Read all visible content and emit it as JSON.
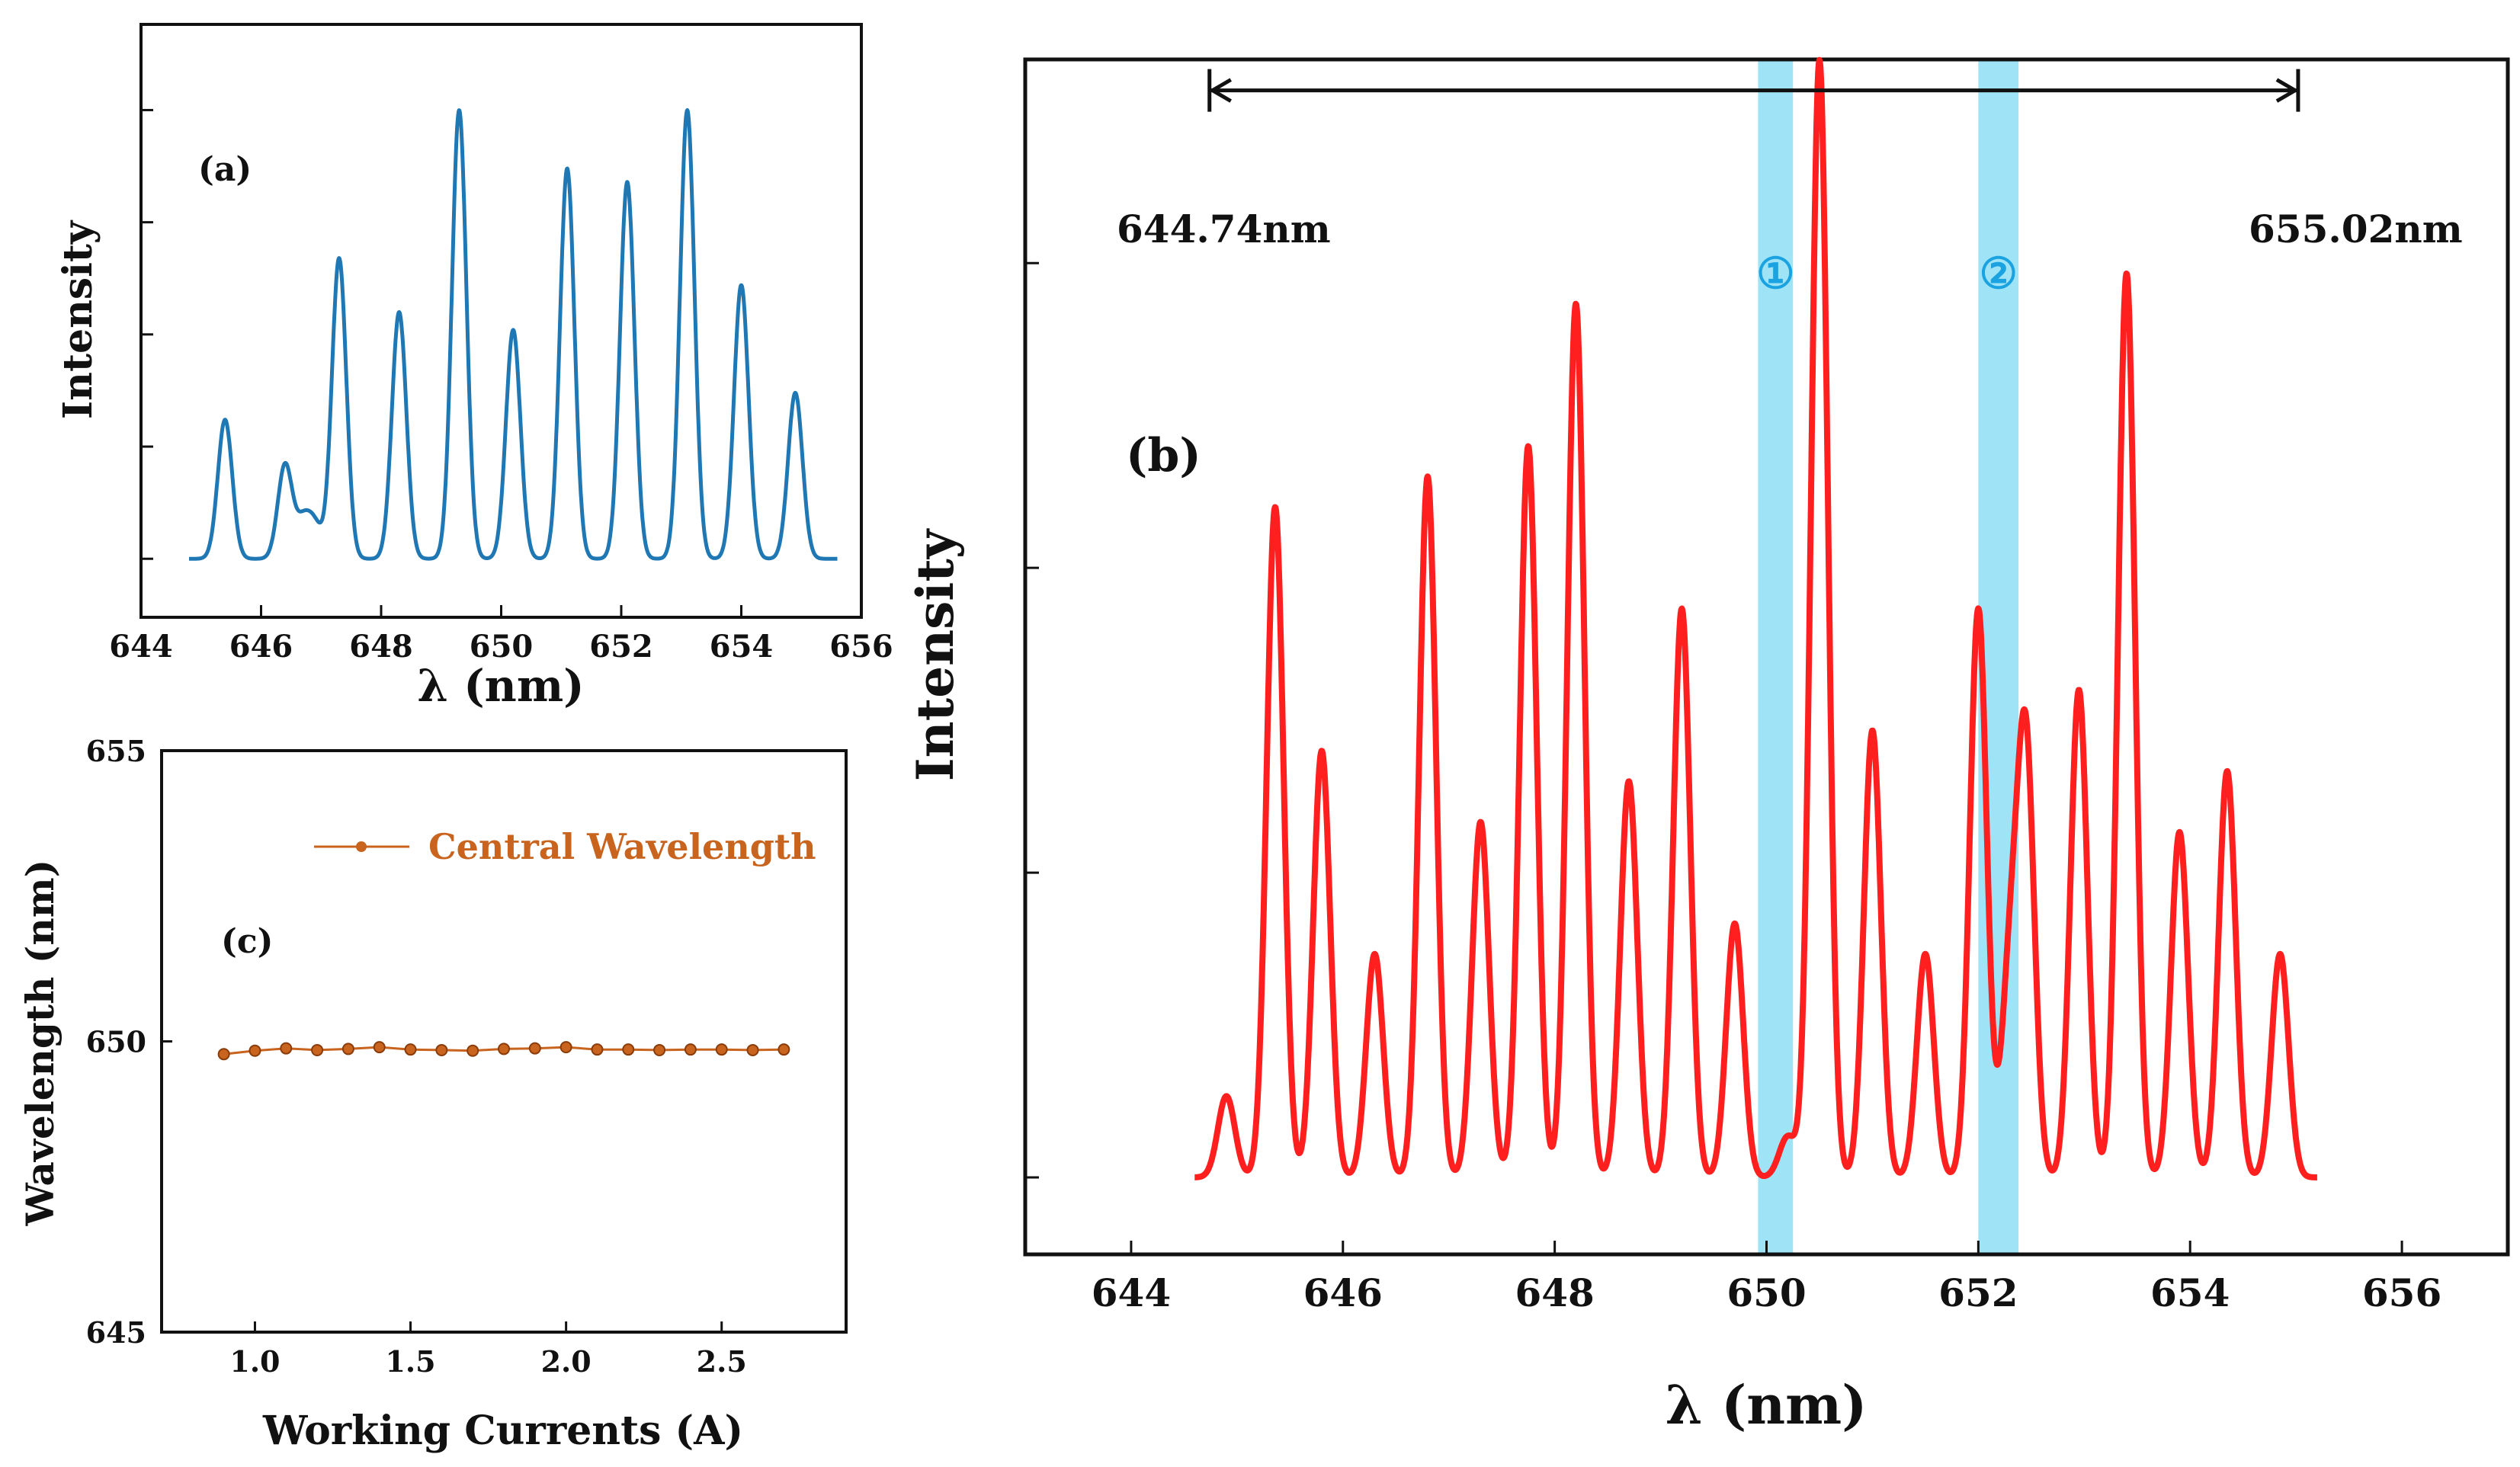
{
  "colors": {
    "panel_a_line": "#1f77b4",
    "panel_b_line": "#ff1f1f",
    "panel_c_line": "#c8641e",
    "panel_c_marker_edge": "#8a3c0a",
    "highlight_band": "#9fe3f6",
    "band_label": "#1aa3e0",
    "axis": "#111111"
  },
  "chart_data": [
    {
      "panel": "a",
      "label": "(a)",
      "type": "line",
      "xlabel": "λ (nm)",
      "ylabel": "Intensity",
      "xlim": [
        644,
        656
      ],
      "ylim": [
        0,
        1.07
      ],
      "xticks": [
        644,
        646,
        648,
        650,
        652,
        654,
        656
      ],
      "x_tick_labels": [
        "644",
        "646",
        "648",
        "650",
        "652",
        "654",
        "656"
      ],
      "y_tick_labels_shown": false,
      "x_range": [
        644.8,
        655.6
      ],
      "baseline": 0.02,
      "peaks": [
        {
          "center": 645.4,
          "height": 0.31
        },
        {
          "center": 646.4,
          "height": 0.21
        },
        {
          "center": 646.7,
          "height": 0.08
        },
        {
          "center": 646.9,
          "height": 0.07
        },
        {
          "center": 647.3,
          "height": 0.67
        },
        {
          "center": 648.3,
          "height": 0.55
        },
        {
          "center": 649.3,
          "height": 1.0
        },
        {
          "center": 650.2,
          "height": 0.51
        },
        {
          "center": 651.1,
          "height": 0.87
        },
        {
          "center": 652.1,
          "height": 0.84
        },
        {
          "center": 653.1,
          "height": 1.0
        },
        {
          "center": 654.0,
          "height": 0.61
        },
        {
          "center": 654.9,
          "height": 0.37
        }
      ]
    },
    {
      "panel": "b",
      "label": "(b)",
      "type": "line",
      "xlabel": "λ (nm)",
      "ylabel": "Intensity",
      "xlim": [
        643,
        657
      ],
      "ylim": [
        0,
        1.15
      ],
      "xticks": [
        644,
        646,
        648,
        650,
        652,
        654,
        656
      ],
      "x_tick_labels": [
        "644",
        "646",
        "648",
        "650",
        "652",
        "654",
        "656"
      ],
      "y_tick_labels_shown": false,
      "x_range": [
        644.6,
        655.2
      ],
      "baseline": 0.0,
      "peaks": [
        {
          "center": 644.9,
          "height": 0.08
        },
        {
          "center": 645.36,
          "height": 0.66
        },
        {
          "center": 645.8,
          "height": 0.42
        },
        {
          "center": 646.3,
          "height": 0.22
        },
        {
          "center": 646.8,
          "height": 0.69
        },
        {
          "center": 647.3,
          "height": 0.35
        },
        {
          "center": 647.75,
          "height": 0.72
        },
        {
          "center": 648.2,
          "height": 0.86
        },
        {
          "center": 648.7,
          "height": 0.39
        },
        {
          "center": 649.2,
          "height": 0.56
        },
        {
          "center": 649.7,
          "height": 0.25
        },
        {
          "center": 650.2,
          "height": 0.04
        },
        {
          "center": 650.5,
          "height": 1.1
        },
        {
          "center": 651.0,
          "height": 0.44
        },
        {
          "center": 651.5,
          "height": 0.22
        },
        {
          "center": 652.0,
          "height": 0.56
        },
        {
          "center": 652.3,
          "height": 0.2
        },
        {
          "center": 652.45,
          "height": 0.42
        },
        {
          "center": 652.95,
          "height": 0.48
        },
        {
          "center": 653.4,
          "height": 0.89
        },
        {
          "center": 653.9,
          "height": 0.34
        },
        {
          "center": 654.35,
          "height": 0.4
        },
        {
          "center": 654.85,
          "height": 0.22
        }
      ],
      "bands": [
        {
          "label": "①",
          "from": 649.92,
          "to": 650.25
        },
        {
          "label": "②",
          "from": 652.0,
          "to": 652.38
        }
      ],
      "span_arrow": {
        "from": 644.74,
        "to": 655.02,
        "level": 1.07
      },
      "annotations": {
        "left": "644.74nm",
        "right": "655.02nm"
      }
    },
    {
      "panel": "c",
      "label": "(c)",
      "type": "line",
      "xlabel": "Working Currents (A)",
      "ylabel": "Wavelength (nm)",
      "xlim": [
        0.7,
        2.9
      ],
      "ylim": [
        645,
        655
      ],
      "xticks": [
        1.0,
        1.5,
        2.0,
        2.5
      ],
      "x_tick_labels": [
        "1.0",
        "1.5",
        "2.0",
        "2.5"
      ],
      "yticks": [
        645,
        650,
        655
      ],
      "y_tick_labels": [
        "645",
        "650",
        "655"
      ],
      "legend": "Central Wavelength",
      "legend_position": "top-right",
      "series": [
        {
          "name": "Central Wavelength",
          "x": [
            0.9,
            1.0,
            1.1,
            1.2,
            1.3,
            1.4,
            1.5,
            1.6,
            1.7,
            1.8,
            1.9,
            2.0,
            2.1,
            2.2,
            2.3,
            2.4,
            2.5,
            2.6,
            2.7
          ],
          "y": [
            649.78,
            649.84,
            649.88,
            649.85,
            649.87,
            649.9,
            649.86,
            649.85,
            649.84,
            649.87,
            649.88,
            649.9,
            649.86,
            649.86,
            649.85,
            649.86,
            649.86,
            649.85,
            649.86
          ]
        }
      ]
    }
  ]
}
